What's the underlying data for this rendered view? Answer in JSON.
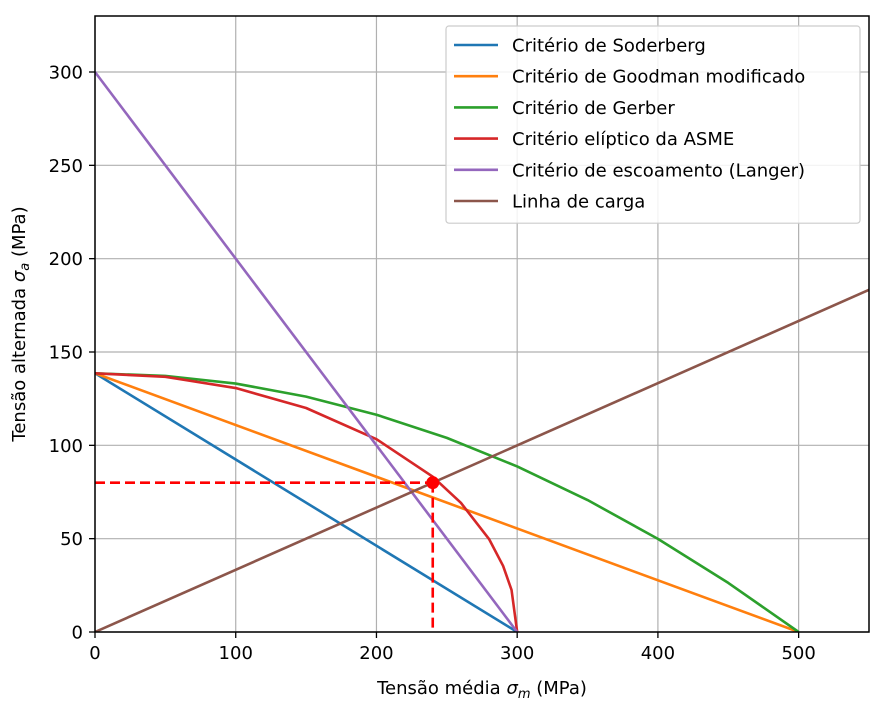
{
  "chart_data": {
    "type": "line",
    "xlabel_main": "Tensão média ",
    "xlabel_sym": "σ",
    "xlabel_sub": "m",
    "xlabel_unit": " (MPa)",
    "ylabel_main": "Tensão alternada ",
    "ylabel_sym": "σ",
    "ylabel_sub": "a",
    "ylabel_unit": " (MPa)",
    "xlim": [
      0,
      550
    ],
    "ylim": [
      0,
      330
    ],
    "xticks": [
      0,
      100,
      200,
      300,
      400,
      500
    ],
    "yticks": [
      0,
      50,
      100,
      150,
      200,
      250,
      300
    ],
    "grid": true,
    "legend_position": "top-right",
    "Se": 138.6,
    "Sut": 500,
    "Sy": 300,
    "series": [
      {
        "name": "Critério de Soderberg",
        "color": "#1f77b4",
        "x": [
          0,
          300
        ],
        "y": [
          138.6,
          0
        ]
      },
      {
        "name": "Critério de Goodman modificado",
        "color": "#ff7f0e",
        "x": [
          0,
          500
        ],
        "y": [
          138.6,
          0
        ]
      },
      {
        "name": "Critério de Gerber",
        "color": "#2ca02c",
        "x": [
          0,
          50,
          100,
          150,
          200,
          250,
          300,
          350,
          400,
          450,
          500
        ],
        "y": [
          138.6,
          137.2,
          133.1,
          126.1,
          116.4,
          104.0,
          88.7,
          70.7,
          49.9,
          26.3,
          0
        ]
      },
      {
        "name": "Critério elíptico da ASME",
        "color": "#d62728",
        "x": [
          0,
          50,
          100,
          150,
          200,
          240,
          260,
          280,
          290,
          296,
          300
        ],
        "y": [
          138.6,
          136.7,
          130.7,
          120.0,
          103.3,
          83.2,
          69.2,
          49.8,
          35.4,
          22.5,
          0
        ]
      },
      {
        "name": "Critério de escoamento (Langer)",
        "color": "#9467bd",
        "x": [
          0,
          300
        ],
        "y": [
          300,
          0
        ]
      },
      {
        "name": "Linha de carga",
        "color": "#8c564b",
        "x": [
          0,
          550
        ],
        "y": [
          0,
          183.3
        ]
      }
    ],
    "marker": {
      "x": 240,
      "y": 80,
      "color": "#ff0000"
    },
    "dashed_color": "#ff0000"
  }
}
